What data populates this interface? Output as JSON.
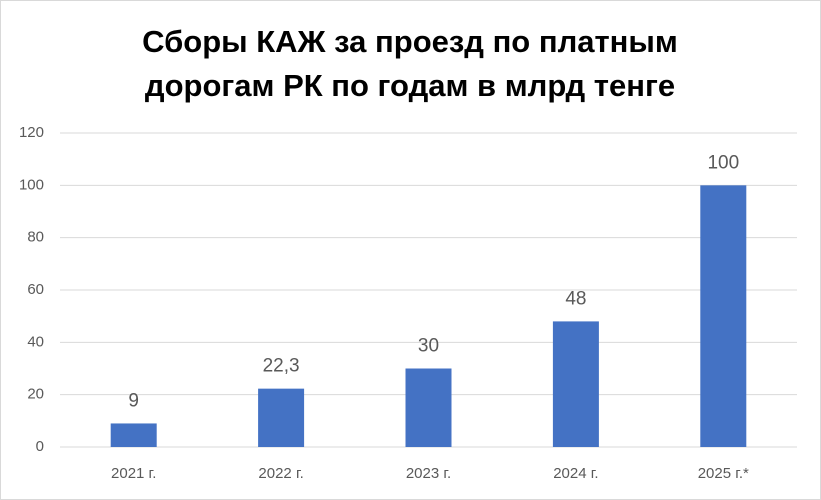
{
  "chart_data": {
    "type": "bar",
    "title": [
      "Сборы КАЖ за проезд по платным",
      "дорогам РК по годам в млрд тенге"
    ],
    "categories": [
      "2021 г.",
      "2022 г.",
      "2023 г.",
      "2024 г.",
      "2025 г.*"
    ],
    "values": [
      9,
      22.3,
      30,
      48,
      100
    ],
    "value_labels": [
      "9",
      "22,3",
      "30",
      "48",
      "100"
    ],
    "color": "#4472c4",
    "ylim": [
      0,
      120
    ],
    "yticks": [
      0,
      20,
      40,
      60,
      80,
      100,
      120
    ],
    "grid": true
  }
}
